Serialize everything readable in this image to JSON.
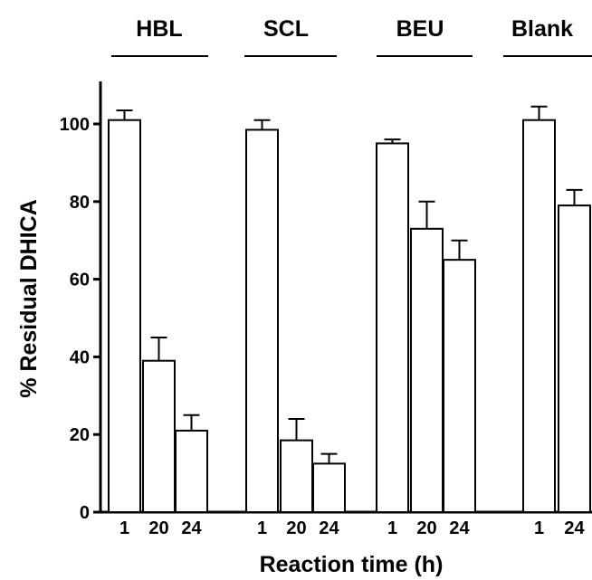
{
  "chart_data": {
    "type": "bar",
    "xlabel": "Reaction time (h)",
    "ylabel": "% Residual DHICA",
    "ylim": [
      0,
      110
    ],
    "yticks": [
      0,
      20,
      40,
      60,
      80,
      100
    ],
    "colors": {
      "bar_fill": "#ffffff",
      "stroke": "#000000"
    },
    "groups": [
      {
        "name": "HBL",
        "bars": [
          {
            "time": "1",
            "value": 101,
            "error": 2.5
          },
          {
            "time": "20",
            "value": 39,
            "error": 6
          },
          {
            "time": "24",
            "value": 21,
            "error": 4
          }
        ]
      },
      {
        "name": "SCL",
        "bars": [
          {
            "time": "1",
            "value": 98.5,
            "error": 2.5
          },
          {
            "time": "20",
            "value": 18.5,
            "error": 5.5
          },
          {
            "time": "24",
            "value": 12.5,
            "error": 2.5
          }
        ]
      },
      {
        "name": "BEU",
        "bars": [
          {
            "time": "1",
            "value": 95,
            "error": 1
          },
          {
            "time": "20",
            "value": 73,
            "error": 7
          },
          {
            "time": "24",
            "value": 65,
            "error": 5
          }
        ]
      },
      {
        "name": "Blank",
        "bars": [
          {
            "time": "1",
            "value": 101,
            "error": 3.5
          },
          {
            "time": "24",
            "value": 79,
            "error": 4
          }
        ]
      }
    ]
  }
}
